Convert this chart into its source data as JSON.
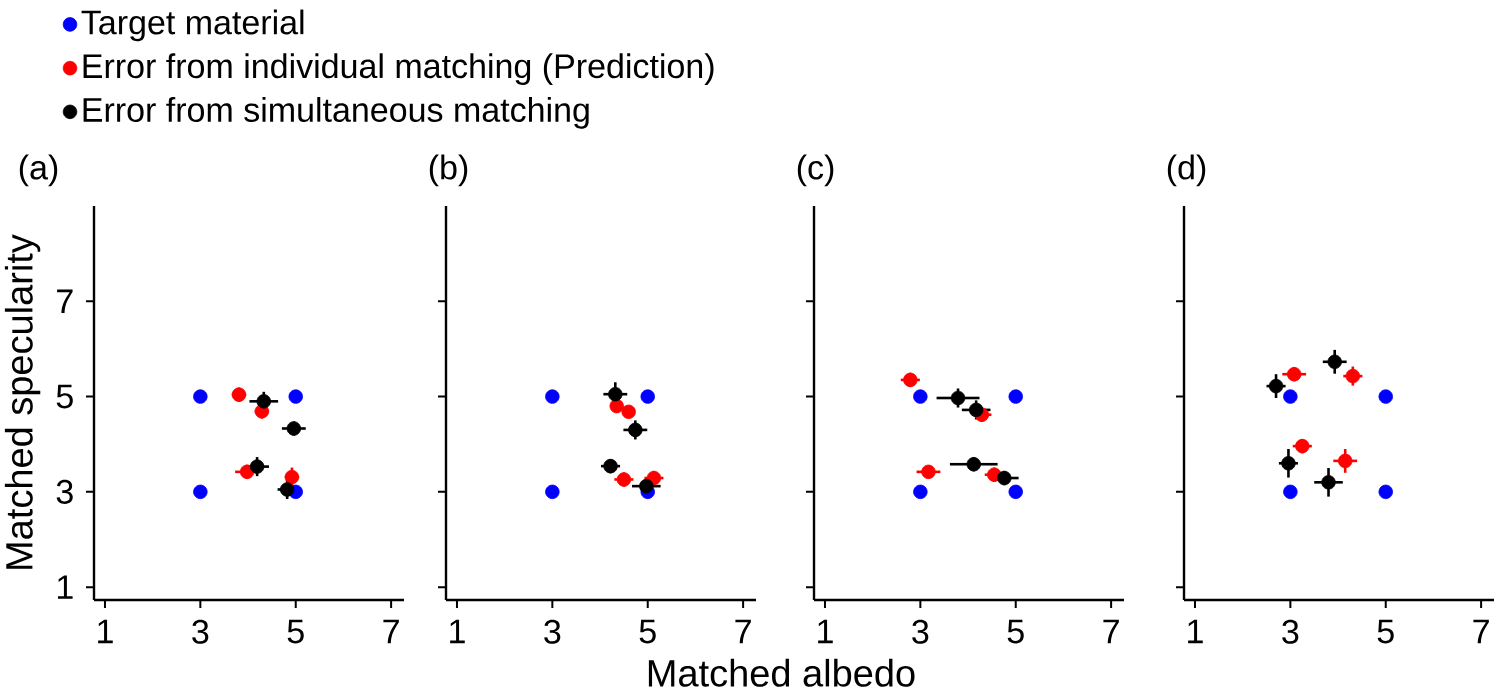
{
  "chart_data": [
    {
      "type": "scatter",
      "title": "(a)",
      "ylabel": "Matched specularity",
      "xlim": [
        0.77,
        7.27
      ],
      "ylim": [
        0.73,
        9.0
      ],
      "xticks": [
        1,
        3,
        5,
        7
      ],
      "yticks": [
        1,
        3,
        5,
        7
      ],
      "marker": "circle",
      "legend": "top",
      "series": [
        {
          "name": "Target material",
          "color": "#0000ff",
          "x": [
            3,
            3,
            5,
            5
          ],
          "values": [
            5,
            3,
            5,
            3
          ]
        },
        {
          "name": "Error from individual matching (Prediction)",
          "color": "#ff0000",
          "x": [
            3.81,
            4.29,
            3.98,
            4.92
          ],
          "values": [
            5.04,
            4.69,
            3.42,
            3.31
          ],
          "errors": [
            0.15,
            0.15,
            0.15,
            0.2
          ],
          "xerrors": [
            0.15,
            0.15,
            0.25,
            0.15
          ]
        },
        {
          "name": "Error from simultaneous matching",
          "color": "#000000",
          "x": [
            4.33,
            4.96,
            4.19,
            4.82
          ],
          "values": [
            4.9,
            4.33,
            3.53,
            3.05
          ],
          "errors": [
            0.2,
            0.15,
            0.2,
            0.2
          ],
          "xerrors": [
            0.3,
            0.25,
            0.25,
            0.2
          ]
        }
      ]
    },
    {
      "type": "scatter",
      "title": "(b)",
      "xlabel": "Matched albedo",
      "xlim": [
        0.77,
        7.27
      ],
      "ylim": [
        0.73,
        9.0
      ],
      "xticks": [
        1,
        3,
        5,
        7
      ],
      "yticks": [
        1,
        3,
        5,
        7
      ],
      "marker": "circle",
      "tick_labels": "x",
      "series": [
        {
          "color": "#0000ff",
          "x": [
            3,
            3,
            5,
            5
          ],
          "values": [
            5,
            3,
            5,
            3
          ]
        },
        {
          "color": "#ff0000",
          "x": [
            4.35,
            4.5,
            5.13,
            4.6
          ],
          "values": [
            4.8,
            3.26,
            3.29,
            4.68
          ],
          "errors": [
            0.12,
            0.15,
            0.15,
            0.12
          ],
          "xerrors": [
            0.12,
            0.2,
            0.2,
            0.12
          ]
        },
        {
          "color": "#000000",
          "x": [
            4.32,
            4.22,
            4.97,
            4.74
          ],
          "values": [
            5.05,
            3.54,
            3.12,
            4.3
          ],
          "errors": [
            0.25,
            0.15,
            0.15,
            0.2
          ],
          "xerrors": [
            0.25,
            0.2,
            0.3,
            0.25
          ]
        }
      ]
    },
    {
      "type": "scatter",
      "title": "(c)",
      "xlim": [
        0.77,
        7.27
      ],
      "ylim": [
        0.73,
        9.0
      ],
      "xticks": [
        1,
        3,
        5,
        7
      ],
      "yticks": [
        1,
        3,
        5,
        7
      ],
      "marker": "circle",
      "tick_labels": "x",
      "series": [
        {
          "color": "#0000ff",
          "x": [
            3,
            3,
            5,
            5
          ],
          "values": [
            5,
            3,
            5,
            3
          ]
        },
        {
          "color": "#ff0000",
          "x": [
            2.79,
            4.29,
            3.17,
            4.55
          ],
          "values": [
            5.35,
            4.62,
            3.42,
            3.36
          ],
          "errors": [
            0.15,
            0.15,
            0.1,
            0.15
          ],
          "xerrors": [
            0.2,
            0.2,
            0.25,
            0.2
          ]
        },
        {
          "color": "#000000",
          "x": [
            3.79,
            4.17,
            4.12,
            4.76
          ],
          "values": [
            4.97,
            4.72,
            3.58,
            3.29
          ],
          "errors": [
            0.2,
            0.2,
            0.15,
            0.15
          ],
          "xerrors": [
            0.45,
            0.3,
            0.5,
            0.3
          ]
        }
      ]
    },
    {
      "type": "scatter",
      "title": "(d)",
      "xlim": [
        0.77,
        7.27
      ],
      "ylim": [
        0.73,
        9.0
      ],
      "xticks": [
        1,
        3,
        5,
        7
      ],
      "yticks": [
        1,
        3,
        5,
        7
      ],
      "marker": "circle",
      "tick_labels": "x",
      "series": [
        {
          "color": "#0000ff",
          "x": [
            3,
            3,
            5,
            5
          ],
          "values": [
            5,
            3,
            5,
            3
          ]
        },
        {
          "color": "#ff0000",
          "x": [
            3.08,
            4.31,
            3.25,
            4.15
          ],
          "values": [
            5.47,
            5.43,
            3.96,
            3.65
          ],
          "errors": [
            0.15,
            0.2,
            0.15,
            0.25
          ],
          "xerrors": [
            0.25,
            0.2,
            0.2,
            0.25
          ]
        },
        {
          "color": "#000000",
          "x": [
            2.7,
            3.93,
            2.96,
            3.8
          ],
          "values": [
            5.22,
            5.73,
            3.6,
            3.2
          ],
          "errors": [
            0.25,
            0.25,
            0.3,
            0.3
          ],
          "xerrors": [
            0.2,
            0.25,
            0.2,
            0.3
          ]
        }
      ]
    }
  ]
}
